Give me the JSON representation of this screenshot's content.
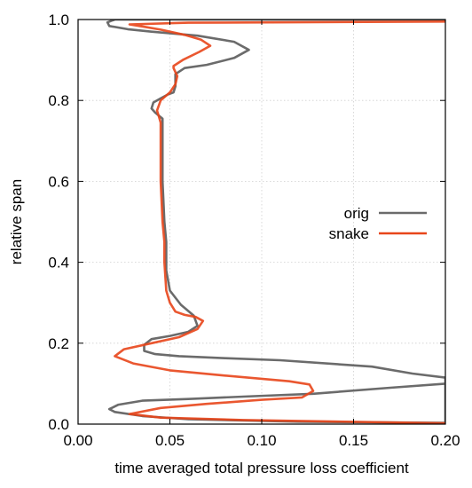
{
  "chart_data": {
    "type": "line",
    "title": "",
    "xlabel": "time averaged total pressure loss coefficient",
    "ylabel": "relative span",
    "xlim": [
      0.0,
      0.2
    ],
    "ylim": [
      0.0,
      1.0
    ],
    "xticks": [
      0.0,
      0.05,
      0.1,
      0.15,
      0.2
    ],
    "xtick_labels": [
      "0.00",
      "0.05",
      "0.10",
      "0.15",
      "0.20"
    ],
    "yticks": [
      0.0,
      0.2,
      0.4,
      0.6,
      0.8,
      1.0
    ],
    "ytick_labels": [
      "0.0",
      "0.2",
      "0.4",
      "0.6",
      "0.8",
      "1.0"
    ],
    "grid": true,
    "legend_position": "center-right",
    "series": [
      {
        "name": "orig",
        "color": "#6b6b6b",
        "points": [
          [
            0.2,
            0.1
          ],
          [
            0.17,
            0.09
          ],
          [
            0.128,
            0.075
          ],
          [
            0.09,
            0.068
          ],
          [
            0.06,
            0.062
          ],
          [
            0.035,
            0.058
          ],
          [
            0.022,
            0.048
          ],
          [
            0.017,
            0.037
          ],
          [
            0.02,
            0.03
          ],
          [
            0.035,
            0.02
          ],
          [
            0.06,
            0.012
          ],
          [
            0.12,
            0.006
          ],
          [
            0.2,
            0.003
          ],
          [
            0.2,
            0.115
          ],
          [
            0.182,
            0.125
          ],
          [
            0.16,
            0.142
          ],
          [
            0.11,
            0.158
          ],
          [
            0.08,
            0.163
          ],
          [
            0.055,
            0.168
          ],
          [
            0.042,
            0.173
          ],
          [
            0.036,
            0.181
          ],
          [
            0.036,
            0.196
          ],
          [
            0.04,
            0.21
          ],
          [
            0.05,
            0.218
          ],
          [
            0.06,
            0.228
          ],
          [
            0.065,
            0.243
          ],
          [
            0.063,
            0.268
          ],
          [
            0.056,
            0.295
          ],
          [
            0.05,
            0.33
          ],
          [
            0.048,
            0.38
          ],
          [
            0.048,
            0.45
          ],
          [
            0.047,
            0.5
          ],
          [
            0.046,
            0.6
          ],
          [
            0.046,
            0.7
          ],
          [
            0.046,
            0.755
          ],
          [
            0.042,
            0.77
          ],
          [
            0.04,
            0.78
          ],
          [
            0.041,
            0.795
          ],
          [
            0.045,
            0.805
          ],
          [
            0.049,
            0.815
          ],
          [
            0.052,
            0.82
          ],
          [
            0.053,
            0.835
          ],
          [
            0.053,
            0.865
          ],
          [
            0.058,
            0.88
          ],
          [
            0.07,
            0.888
          ],
          [
            0.085,
            0.905
          ],
          [
            0.093,
            0.925
          ],
          [
            0.085,
            0.945
          ],
          [
            0.065,
            0.96
          ],
          [
            0.04,
            0.97
          ],
          [
            0.027,
            0.976
          ],
          [
            0.017,
            0.984
          ],
          [
            0.016,
            0.993
          ],
          [
            0.02,
            1.0
          ],
          [
            0.2,
            1.0
          ]
        ]
      },
      {
        "name": "snake",
        "color": "#e8451a",
        "points": [
          [
            0.2,
            0.002
          ],
          [
            0.09,
            0.01
          ],
          [
            0.045,
            0.016
          ],
          [
            0.028,
            0.025
          ],
          [
            0.045,
            0.04
          ],
          [
            0.07,
            0.05
          ],
          [
            0.1,
            0.06
          ],
          [
            0.122,
            0.066
          ],
          [
            0.128,
            0.082
          ],
          [
            0.126,
            0.098
          ],
          [
            0.115,
            0.106
          ],
          [
            0.08,
            0.12
          ],
          [
            0.05,
            0.133
          ],
          [
            0.03,
            0.15
          ],
          [
            0.02,
            0.168
          ],
          [
            0.025,
            0.185
          ],
          [
            0.04,
            0.2
          ],
          [
            0.055,
            0.215
          ],
          [
            0.065,
            0.235
          ],
          [
            0.068,
            0.255
          ],
          [
            0.064,
            0.265
          ],
          [
            0.058,
            0.27
          ],
          [
            0.053,
            0.278
          ],
          [
            0.05,
            0.3
          ],
          [
            0.048,
            0.33
          ],
          [
            0.047,
            0.4
          ],
          [
            0.047,
            0.45
          ],
          [
            0.046,
            0.5
          ],
          [
            0.045,
            0.6
          ],
          [
            0.045,
            0.7
          ],
          [
            0.045,
            0.745
          ],
          [
            0.044,
            0.76
          ],
          [
            0.043,
            0.775
          ],
          [
            0.045,
            0.8
          ],
          [
            0.05,
            0.82
          ],
          [
            0.053,
            0.84
          ],
          [
            0.054,
            0.86
          ],
          [
            0.052,
            0.88
          ],
          [
            0.052,
            0.885
          ],
          [
            0.057,
            0.9
          ],
          [
            0.066,
            0.92
          ],
          [
            0.072,
            0.935
          ],
          [
            0.067,
            0.95
          ],
          [
            0.058,
            0.962
          ],
          [
            0.045,
            0.975
          ],
          [
            0.035,
            0.983
          ],
          [
            0.028,
            0.988
          ],
          [
            0.06,
            0.992
          ],
          [
            0.2,
            0.995
          ]
        ]
      }
    ]
  }
}
